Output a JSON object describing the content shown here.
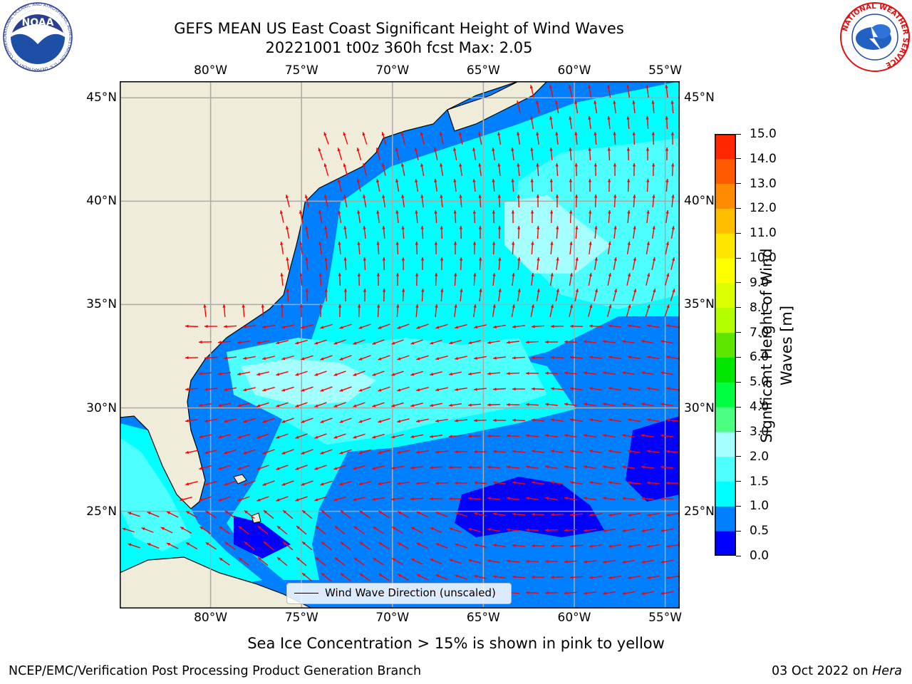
{
  "title": {
    "line1": "GEFS MEAN US East Coast Significant Height of Wind Waves",
    "line2": "20221001 t00z 360h fcst   Max: 2.05"
  },
  "map": {
    "lon_range": [
      -85,
      -54.2
    ],
    "lat_range": [
      20.3,
      45.8
    ],
    "lon_ticks": [
      "80°W",
      "75°W",
      "70°W",
      "65°W",
      "60°W",
      "55°W"
    ],
    "lon_tick_values": [
      -80,
      -75,
      -70,
      -65,
      -60,
      -55
    ],
    "lat_ticks": [
      "45°N",
      "40°N",
      "35°N",
      "30°N",
      "25°N"
    ],
    "lat_tick_values": [
      45,
      40,
      35,
      30,
      25
    ],
    "gridlines": true,
    "land_color": "#efedd9",
    "arrow_color": "#ff0000",
    "grid_color": "#aaaaaa",
    "legend": "Wind Wave Direction (unscaled)"
  },
  "colorbar": {
    "title": "Significant Height of Wind Waves [m]",
    "labels": [
      "0.0",
      "0.5",
      "1.0",
      "1.5",
      "2.0",
      "3.0",
      "4.0",
      "5.0",
      "6.0",
      "7.0",
      "8.0",
      "9.0",
      "10.0",
      "11.0",
      "12.0",
      "13.0",
      "14.0",
      "15.0"
    ],
    "colors": [
      "#0000ff",
      "#0080ff",
      "#00ffff",
      "#4dffff",
      "#a6ffff",
      "#4dff80",
      "#00ff3f",
      "#00e600",
      "#5ce600",
      "#b3ff00",
      "#d9ff00",
      "#ffff00",
      "#ffe600",
      "#ffbf00",
      "#ff8c00",
      "#ff5a00",
      "#ff2600"
    ]
  },
  "seaice_note": "Sea Ice Concentration > 15% is shown in pink to yellow",
  "footer": {
    "left": "NCEP/EMC/Verification Post Processing Product Generation Branch",
    "right_date": "03 Oct 2022 on ",
    "right_host": "Hera"
  },
  "logos": {
    "noaa": "NOAA",
    "noaa_ring": "NATIONAL OCEANIC AND ATMOSPHERIC ADMINISTRATION · U.S. DEPARTMENT OF COMMERCE",
    "nws_ring": "NATIONAL WEATHER SERVICE"
  }
}
